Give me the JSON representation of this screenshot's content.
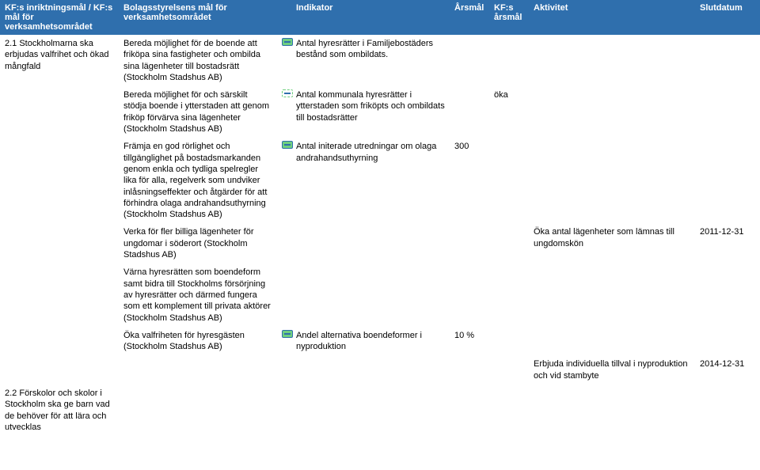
{
  "header": {
    "kf": "KF:s inriktningsmål / KF:s mål för verksamhetsområdet",
    "bol": "Bolagsstyrelsens mål för verksamhetsområdet",
    "ind": "Indikator",
    "ars": "Årsmål",
    "kfa": "KF:s årsmål",
    "akt": "Aktivitet",
    "slut": "Slutdatum"
  },
  "rows": [
    {
      "kf": "2.1 Stockholmarna ska erbjudas valfrihet och ökad mångfald",
      "bol": "Bereda möjlighet för de boende att friköpa sina fastigheter och ombilda sina lägenheter till bostadsrätt (Stockholm Stadshus AB)",
      "icon": "solid",
      "ind": "Antal hyresrätter i Familjebostäders bestånd som ombildats.",
      "ars": "",
      "kfa": "",
      "akt": "",
      "slut": ""
    },
    {
      "kf": "",
      "bol": "Bereda möjlighet för och särskilt stödja boende i ytterstaden att genom friköp förvärva sina lägenheter (Stockholm Stadshus AB)",
      "icon": "dash",
      "ind": "Antal kommunala hyresrätter i ytterstaden som friköpts och ombildats till bostadsrätter",
      "ars": "",
      "kfa": "öka",
      "akt": "",
      "slut": ""
    },
    {
      "kf": "",
      "bol": "Främja en god rörlighet och tillgänglighet på bostadsmarkanden genom enkla och tydliga spelregler lika för alla, regelverk som undviker inlåsningseffekter och åtgärder för att förhindra olaga andrahandsuthyrning (Stockholm Stadshus AB)",
      "icon": "solid",
      "ind": "Antal initerade utredningar om olaga andrahandsuthyrning",
      "ars": "300",
      "kfa": "",
      "akt": "",
      "slut": ""
    },
    {
      "kf": "",
      "bol": "Verka för fler billiga lägenheter för ungdomar i söderort (Stockholm Stadshus AB)",
      "icon": "",
      "ind": "",
      "ars": "",
      "kfa": "",
      "akt": "Öka antal lägenheter som lämnas till ungdomskön",
      "slut": "2011-12-31"
    },
    {
      "kf": "",
      "bol": "Värna hyresrätten som boendeform samt bidra till Stockholms försörjning av hyresrätter och därmed fungera som ett komplement till privata aktörer (Stockholm Stadshus AB)",
      "icon": "",
      "ind": "",
      "ars": "",
      "kfa": "",
      "akt": "",
      "slut": ""
    },
    {
      "kf": "",
      "bol": "Öka valfriheten för hyresgästen (Stockholm Stadshus AB)",
      "icon": "solid",
      "ind": "Andel alternativa boendeformer i nyproduktion",
      "ars": "10 %",
      "kfa": "",
      "akt": "",
      "slut": ""
    },
    {
      "kf": "",
      "bol": "",
      "icon": "",
      "ind": "",
      "ars": "",
      "kfa": "",
      "akt": "Erbjuda individuella tillval i nyproduktion och vid stambyte",
      "slut": "2014-12-31"
    },
    {
      "kf": "2.2 Förskolor och skolor i Stockholm ska ge barn vad de behöver för att lära och utvecklas",
      "bol": "",
      "icon": "",
      "ind": "",
      "ars": "",
      "kfa": "",
      "akt": "",
      "slut": ""
    }
  ]
}
